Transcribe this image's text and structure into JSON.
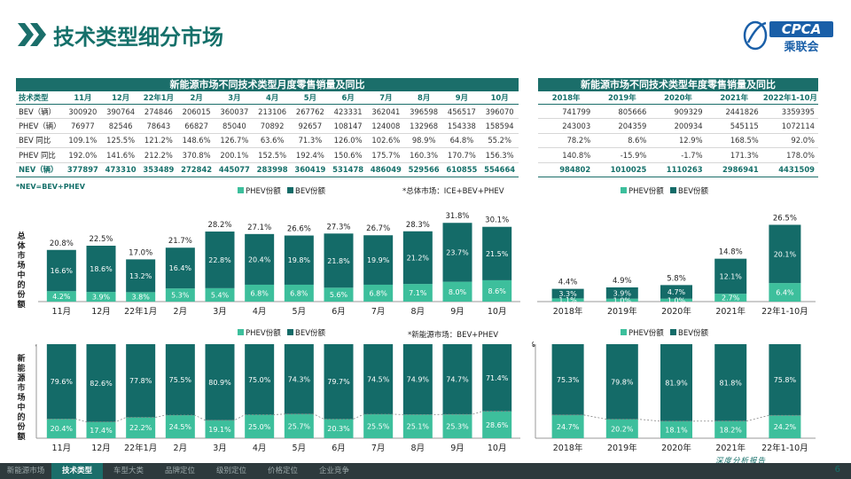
{
  "page": {
    "title": "技术类型细分市场",
    "page_number": "6",
    "slogan": "深度分析报告",
    "logo_text_en": "CPCA",
    "logo_text_cn": "乘联会",
    "footer_tabs": [
      {
        "label": "新能源市场",
        "active": false
      },
      {
        "label": "技术类型",
        "active": true
      },
      {
        "label": "车型大类",
        "active": false
      },
      {
        "label": "品牌定位",
        "active": false
      },
      {
        "label": "级别定位",
        "active": false
      },
      {
        "label": "价格定位",
        "active": false
      },
      {
        "label": "企业竞争",
        "active": false
      }
    ],
    "colors": {
      "bev": "#146b68",
      "phev": "#3dbf9c",
      "accent": "#15706a",
      "footer": "#2e3a3d"
    }
  },
  "monthly_table": {
    "title": "新能源市场不同技术类型月度零售销量及同比",
    "corner": "技术类型",
    "columns": [
      "11月",
      "12月",
      "22年1月",
      "2月",
      "3月",
      "4月",
      "5月",
      "6月",
      "7月",
      "8月",
      "9月",
      "10月"
    ],
    "rows": [
      {
        "label": "BEV（辆）",
        "values": [
          "300920",
          "390764",
          "274846",
          "206015",
          "360037",
          "213106",
          "267762",
          "423331",
          "362041",
          "396598",
          "456517",
          "396070"
        ]
      },
      {
        "label": "PHEV（辆）",
        "values": [
          "76977",
          "82546",
          "78643",
          "66827",
          "85040",
          "70892",
          "92657",
          "108147",
          "124008",
          "132968",
          "154338",
          "158594"
        ]
      },
      {
        "label": "BEV 同比",
        "values": [
          "109.1%",
          "125.5%",
          "121.2%",
          "148.6%",
          "126.7%",
          "63.6%",
          "71.3%",
          "126.0%",
          "102.6%",
          "98.9%",
          "64.8%",
          "55.2%"
        ]
      },
      {
        "label": "PHEV 同比",
        "values": [
          "192.0%",
          "141.6%",
          "212.2%",
          "370.8%",
          "200.1%",
          "152.5%",
          "192.4%",
          "150.6%",
          "175.7%",
          "160.3%",
          "170.7%",
          "156.3%"
        ]
      },
      {
        "label": "NEV（辆）",
        "values": [
          "377897",
          "473310",
          "353489",
          "272842",
          "445077",
          "283998",
          "360419",
          "531478",
          "486049",
          "529566",
          "610855",
          "554664"
        ]
      }
    ],
    "footnote": "*NEV=BEV+PHEV"
  },
  "annual_table": {
    "title": "新能源市场不同技术类型年度零售销量及同比",
    "columns": [
      "2018年",
      "2019年",
      "2020年",
      "2021年",
      "2022年1-10月"
    ],
    "rows": [
      [
        "741799",
        "805666",
        "909329",
        "2441826",
        "3359395"
      ],
      [
        "243003",
        "204359",
        "200934",
        "545115",
        "1072114"
      ],
      [
        "78.2%",
        "8.6%",
        "12.9%",
        "168.5%",
        "92.0%"
      ],
      [
        "140.8%",
        "-15.9%",
        "-1.7%",
        "171.3%",
        "178.0%"
      ],
      [
        "984802",
        "1010025",
        "1110263",
        "2986941",
        "4431509"
      ]
    ]
  },
  "labels": {
    "legend_phev": "PHEV份额",
    "legend_bev": "BEV份额",
    "note_total": "*总体市场：ICE+BEV+PHEV",
    "note_nev": "*新能源市场：BEV+PHEV",
    "ylabel_total": "总体市场中的份额",
    "ylabel_nev": "新能源市场中的份额",
    "axis_100": "100%"
  },
  "chart_data": [
    {
      "type": "bar",
      "stacked": true,
      "categories": [
        "11月",
        "12月",
        "22年1月",
        "2月",
        "3月",
        "4月",
        "5月",
        "6月",
        "7月",
        "8月",
        "9月",
        "10月"
      ],
      "series": [
        {
          "name": "PHEV份额",
          "values": [
            4.2,
            3.9,
            3.8,
            5.3,
            5.4,
            6.8,
            6.8,
            5.6,
            6.8,
            7.1,
            8.0,
            8.6
          ]
        },
        {
          "name": "BEV份额",
          "values": [
            16.6,
            18.6,
            13.2,
            16.4,
            22.8,
            20.4,
            19.8,
            21.8,
            19.9,
            21.2,
            23.7,
            21.5
          ]
        }
      ],
      "totals": [
        20.8,
        22.5,
        17.0,
        21.7,
        28.2,
        27.1,
        26.6,
        27.3,
        26.7,
        28.3,
        31.8,
        30.1
      ],
      "unit": "%",
      "ylim": [
        0,
        35
      ],
      "legend": "top"
    },
    {
      "type": "bar",
      "stacked": true,
      "categories": [
        "2018年",
        "2019年",
        "2020年",
        "2021年",
        "22年1-10月"
      ],
      "series": [
        {
          "name": "PHEV份额",
          "values": [
            1.1,
            1.0,
            1.0,
            2.7,
            6.4
          ]
        },
        {
          "name": "BEV份额",
          "values": [
            3.3,
            3.9,
            4.7,
            12.1,
            20.1
          ]
        }
      ],
      "totals": [
        4.4,
        4.9,
        5.8,
        14.8,
        26.5
      ],
      "unit": "%",
      "ylim": [
        0,
        30
      ],
      "legend": "top"
    },
    {
      "type": "bar",
      "stacked": true,
      "categories": [
        "11月",
        "12月",
        "22年1月",
        "2月",
        "3月",
        "4月",
        "5月",
        "6月",
        "7月",
        "8月",
        "9月",
        "10月"
      ],
      "series": [
        {
          "name": "PHEV份额",
          "values": [
            20.4,
            17.4,
            22.2,
            24.5,
            19.1,
            25.0,
            25.7,
            20.3,
            25.5,
            25.1,
            25.3,
            28.6
          ]
        },
        {
          "name": "BEV份额",
          "values": [
            79.6,
            82.6,
            77.8,
            75.5,
            80.9,
            75.0,
            74.3,
            79.7,
            74.5,
            74.9,
            74.7,
            71.4
          ]
        }
      ],
      "unit": "%",
      "ylim": [
        0,
        100
      ],
      "legend": "top"
    },
    {
      "type": "bar",
      "stacked": true,
      "categories": [
        "2018年",
        "2019年",
        "2020年",
        "2021年",
        "22年1-10月"
      ],
      "series": [
        {
          "name": "PHEV份额",
          "values": [
            24.7,
            20.2,
            18.1,
            18.2,
            24.2
          ]
        },
        {
          "name": "BEV份额",
          "values": [
            75.3,
            79.8,
            81.9,
            81.8,
            75.8
          ]
        }
      ],
      "unit": "%",
      "ylim": [
        0,
        100
      ],
      "legend": "top"
    }
  ]
}
